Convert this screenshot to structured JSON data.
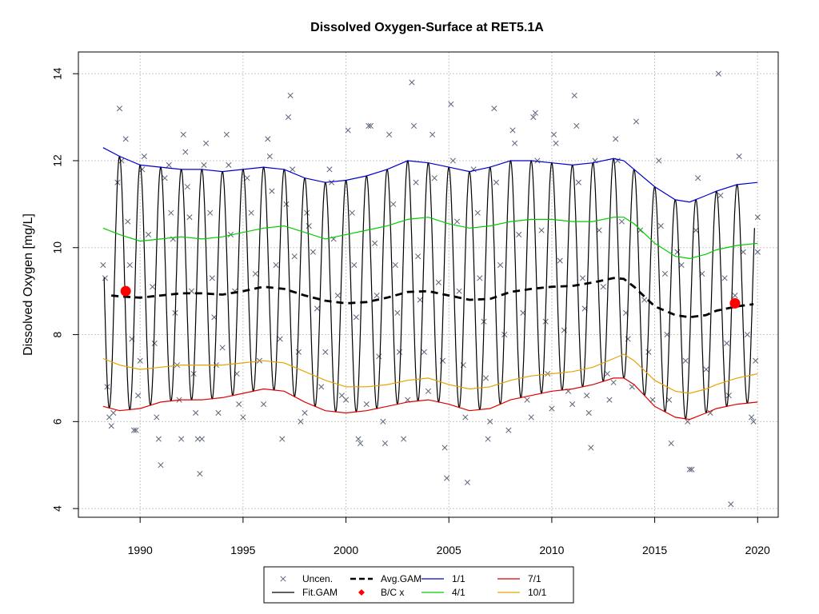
{
  "chart_data": {
    "type": "line",
    "title": "Dissolved Oxygen-Surface at RET5.1A",
    "xlabel": "",
    "ylabel": "Dissolved Oxygen [mg/L]",
    "xlim": [
      1987.0,
      2021.0
    ],
    "ylim": [
      3.8,
      14.5
    ],
    "x_ticks": [
      1990,
      1995,
      2000,
      2005,
      2010,
      2015,
      2020
    ],
    "y_ticks": [
      4,
      6,
      8,
      10,
      12,
      14
    ],
    "grid": true,
    "legend_position": "bottom-center",
    "colors": {
      "points": "#5a6478",
      "fit_gam": "#000000",
      "avg_gam": "#000000",
      "bc": "#ff0000",
      "jan1": "#0000cc",
      "apr1": "#00cc00",
      "jul1": "#dd0000",
      "oct1": "#e8a200"
    },
    "legend": [
      {
        "key": "uncen",
        "label": "Uncen."
      },
      {
        "key": "avg",
        "label": "Avg.GAM"
      },
      {
        "key": "jan1",
        "label": "1/1"
      },
      {
        "key": "jul1",
        "label": "7/1"
      },
      {
        "key": "fit",
        "label": "Fit.GAM"
      },
      {
        "key": "bc",
        "label": "B/C x"
      },
      {
        "key": "apr1",
        "label": "4/1"
      },
      {
        "key": "oct1",
        "label": "10/1"
      }
    ],
    "series": [
      {
        "name": "1/1",
        "key": "jan1",
        "x": [
          1988.2,
          1989.0,
          1990.0,
          1991.0,
          1992.0,
          1993.0,
          1994.0,
          1995.0,
          1996.0,
          1997.0,
          1998.0,
          1999.0,
          2000.0,
          2001.0,
          2002.0,
          2003.0,
          2004.0,
          2005.0,
          2006.0,
          2007.0,
          2008.0,
          2009.0,
          2010.0,
          2011.0,
          2012.0,
          2013.0,
          2013.5,
          2014.0,
          2015.0,
          2016.0,
          2016.7,
          2017.5,
          2018.0,
          2019.0,
          2020.0
        ],
        "y": [
          12.3,
          12.1,
          11.9,
          11.85,
          11.8,
          11.8,
          11.75,
          11.8,
          11.85,
          11.8,
          11.6,
          11.5,
          11.55,
          11.65,
          11.8,
          12.0,
          11.95,
          11.85,
          11.75,
          11.85,
          12.0,
          12.0,
          11.95,
          11.9,
          11.95,
          12.05,
          12.0,
          11.8,
          11.4,
          11.1,
          11.05,
          11.2,
          11.3,
          11.45,
          11.5
        ]
      },
      {
        "name": "4/1",
        "key": "apr1",
        "x": [
          1988.2,
          1989.0,
          1990.0,
          1991.0,
          1992.0,
          1993.0,
          1994.0,
          1995.0,
          1996.0,
          1997.0,
          1998.0,
          1999.0,
          2000.0,
          2001.0,
          2002.0,
          2003.0,
          2004.0,
          2005.0,
          2006.0,
          2007.0,
          2008.0,
          2009.0,
          2010.0,
          2011.0,
          2012.0,
          2013.0,
          2013.5,
          2014.0,
          2015.0,
          2016.0,
          2016.7,
          2017.5,
          2018.0,
          2019.0,
          2020.0
        ],
        "y": [
          10.45,
          10.3,
          10.15,
          10.2,
          10.25,
          10.2,
          10.25,
          10.35,
          10.45,
          10.5,
          10.35,
          10.2,
          10.3,
          10.4,
          10.5,
          10.65,
          10.7,
          10.55,
          10.45,
          10.5,
          10.6,
          10.65,
          10.65,
          10.6,
          10.6,
          10.7,
          10.7,
          10.55,
          10.1,
          9.8,
          9.75,
          9.85,
          9.95,
          10.05,
          10.1
        ]
      },
      {
        "name": "10/1",
        "key": "oct1",
        "x": [
          1988.2,
          1989.0,
          1990.0,
          1991.0,
          1992.0,
          1993.0,
          1994.0,
          1995.0,
          1996.0,
          1997.0,
          1998.0,
          1999.0,
          2000.0,
          2001.0,
          2002.0,
          2003.0,
          2004.0,
          2005.0,
          2006.0,
          2007.0,
          2008.0,
          2009.0,
          2010.0,
          2011.0,
          2012.0,
          2013.0,
          2013.5,
          2014.0,
          2015.0,
          2016.0,
          2016.7,
          2017.5,
          2018.0,
          2019.0,
          2020.0
        ],
        "y": [
          7.45,
          7.3,
          7.2,
          7.25,
          7.3,
          7.3,
          7.3,
          7.35,
          7.4,
          7.35,
          7.15,
          6.95,
          6.8,
          6.8,
          6.85,
          6.95,
          7.0,
          6.85,
          6.75,
          6.8,
          6.95,
          7.05,
          7.1,
          7.15,
          7.25,
          7.45,
          7.55,
          7.4,
          6.95,
          6.7,
          6.65,
          6.75,
          6.85,
          7.0,
          7.1
        ]
      },
      {
        "name": "7/1",
        "key": "jul1",
        "x": [
          1988.2,
          1989.0,
          1990.0,
          1991.0,
          1992.0,
          1993.0,
          1994.0,
          1995.0,
          1996.0,
          1997.0,
          1998.0,
          1999.0,
          2000.0,
          2001.0,
          2002.0,
          2003.0,
          2004.0,
          2005.0,
          2006.0,
          2007.0,
          2008.0,
          2009.0,
          2010.0,
          2011.0,
          2012.0,
          2013.0,
          2013.5,
          2014.0,
          2015.0,
          2016.0,
          2016.7,
          2017.5,
          2018.0,
          2019.0,
          2020.0
        ],
        "y": [
          6.35,
          6.25,
          6.3,
          6.45,
          6.5,
          6.5,
          6.55,
          6.65,
          6.75,
          6.7,
          6.45,
          6.25,
          6.2,
          6.25,
          6.35,
          6.45,
          6.5,
          6.4,
          6.25,
          6.3,
          6.5,
          6.6,
          6.7,
          6.75,
          6.85,
          7.0,
          7.0,
          6.85,
          6.35,
          6.1,
          6.05,
          6.2,
          6.3,
          6.4,
          6.45
        ]
      },
      {
        "name": "Avg.GAM",
        "key": "avg",
        "x": [
          1988.6,
          1989.0,
          1990.0,
          1991.0,
          1992.0,
          1993.0,
          1994.0,
          1995.0,
          1996.0,
          1997.0,
          1998.0,
          1999.0,
          2000.0,
          2001.0,
          2002.0,
          2003.0,
          2004.0,
          2005.0,
          2006.0,
          2007.0,
          2008.0,
          2009.0,
          2010.0,
          2011.0,
          2012.0,
          2013.0,
          2013.5,
          2014.0,
          2015.0,
          2016.0,
          2016.7,
          2017.5,
          2018.0,
          2019.0,
          2019.8
        ],
        "y": [
          8.9,
          8.88,
          8.85,
          8.9,
          8.95,
          8.95,
          8.92,
          9.0,
          9.1,
          9.05,
          8.9,
          8.78,
          8.72,
          8.75,
          8.85,
          8.98,
          9.0,
          8.9,
          8.8,
          8.82,
          8.98,
          9.05,
          9.1,
          9.12,
          9.2,
          9.3,
          9.28,
          9.1,
          8.65,
          8.45,
          8.4,
          8.45,
          8.55,
          8.65,
          8.7
        ]
      },
      {
        "name": "Fit.GAM",
        "key": "fit",
        "type": "seasonal",
        "x_start": 1988.25,
        "x_end": 2019.85,
        "note_source": "oscillates between the 7/1 (low) and 1/1 (high) curves each year"
      }
    ],
    "bc_points": [
      {
        "x": 1989.3,
        "y": 9.0
      },
      {
        "x": 2018.9,
        "y": 8.72
      }
    ],
    "points": [
      [
        1988.2,
        9.6
      ],
      [
        1988.3,
        9.3
      ],
      [
        1988.4,
        6.8
      ],
      [
        1988.5,
        6.1
      ],
      [
        1988.6,
        5.9
      ],
      [
        1988.7,
        6.2
      ],
      [
        1988.9,
        11.5
      ],
      [
        1989.0,
        13.2
      ],
      [
        1989.1,
        12.0
      ],
      [
        1989.3,
        12.5
      ],
      [
        1989.4,
        10.6
      ],
      [
        1989.5,
        9.6
      ],
      [
        1989.6,
        7.9
      ],
      [
        1989.7,
        5.8
      ],
      [
        1989.8,
        5.8
      ],
      [
        1989.9,
        6.6
      ],
      [
        1990.0,
        7.4
      ],
      [
        1990.1,
        11.8
      ],
      [
        1990.2,
        12.1
      ],
      [
        1990.4,
        10.3
      ],
      [
        1990.6,
        9.1
      ],
      [
        1990.7,
        7.8
      ],
      [
        1990.8,
        6.1
      ],
      [
        1990.9,
        5.6
      ],
      [
        1991.0,
        5.0
      ],
      [
        1991.2,
        11.6
      ],
      [
        1991.4,
        11.9
      ],
      [
        1991.5,
        10.8
      ],
      [
        1991.6,
        10.2
      ],
      [
        1991.7,
        8.5
      ],
      [
        1991.8,
        7.3
      ],
      [
        1991.9,
        6.5
      ],
      [
        1992.0,
        5.6
      ],
      [
        1992.1,
        12.6
      ],
      [
        1992.2,
        12.2
      ],
      [
        1992.3,
        11.4
      ],
      [
        1992.4,
        10.7
      ],
      [
        1992.5,
        9.0
      ],
      [
        1992.6,
        7.1
      ],
      [
        1992.7,
        6.2
      ],
      [
        1992.8,
        5.6
      ],
      [
        1992.9,
        4.8
      ],
      [
        1993.0,
        5.6
      ],
      [
        1993.1,
        11.9
      ],
      [
        1993.2,
        12.4
      ],
      [
        1993.4,
        10.8
      ],
      [
        1993.5,
        9.3
      ],
      [
        1993.6,
        8.4
      ],
      [
        1993.7,
        7.3
      ],
      [
        1993.8,
        6.2
      ],
      [
        1994.0,
        7.7
      ],
      [
        1994.2,
        12.6
      ],
      [
        1994.3,
        11.9
      ],
      [
        1994.4,
        10.3
      ],
      [
        1994.6,
        9.0
      ],
      [
        1994.7,
        7.1
      ],
      [
        1994.8,
        6.4
      ],
      [
        1995.0,
        6.1
      ],
      [
        1995.2,
        11.6
      ],
      [
        1995.4,
        10.8
      ],
      [
        1995.6,
        9.4
      ],
      [
        1995.8,
        7.4
      ],
      [
        1996.0,
        6.4
      ],
      [
        1996.2,
        12.5
      ],
      [
        1996.3,
        12.1
      ],
      [
        1996.4,
        11.3
      ],
      [
        1996.6,
        9.6
      ],
      [
        1996.8,
        7.9
      ],
      [
        1996.9,
        5.6
      ],
      [
        1997.1,
        11.0
      ],
      [
        1997.2,
        13.0
      ],
      [
        1997.3,
        13.5
      ],
      [
        1997.4,
        11.8
      ],
      [
        1997.5,
        9.8
      ],
      [
        1997.7,
        7.6
      ],
      [
        1997.8,
        6.0
      ],
      [
        1998.0,
        6.2
      ],
      [
        1998.1,
        10.8
      ],
      [
        1998.2,
        10.5
      ],
      [
        1998.4,
        9.9
      ],
      [
        1998.6,
        8.6
      ],
      [
        1998.8,
        6.8
      ],
      [
        1999.0,
        7.6
      ],
      [
        1999.2,
        11.8
      ],
      [
        1999.3,
        11.5
      ],
      [
        1999.4,
        10.2
      ],
      [
        1999.6,
        8.9
      ],
      [
        1999.8,
        6.6
      ],
      [
        2000.0,
        6.5
      ],
      [
        2000.1,
        12.7
      ],
      [
        2000.3,
        10.8
      ],
      [
        2000.4,
        9.6
      ],
      [
        2000.5,
        8.4
      ],
      [
        2000.6,
        5.6
      ],
      [
        2000.7,
        5.5
      ],
      [
        2001.0,
        6.4
      ],
      [
        2001.1,
        12.8
      ],
      [
        2001.2,
        12.8
      ],
      [
        2001.4,
        10.1
      ],
      [
        2001.5,
        8.9
      ],
      [
        2001.6,
        7.5
      ],
      [
        2001.8,
        6.0
      ],
      [
        2001.9,
        5.5
      ],
      [
        2002.1,
        12.6
      ],
      [
        2002.3,
        11.0
      ],
      [
        2002.4,
        9.6
      ],
      [
        2002.5,
        8.5
      ],
      [
        2002.6,
        7.6
      ],
      [
        2002.8,
        5.6
      ],
      [
        2003.0,
        6.5
      ],
      [
        2003.2,
        13.8
      ],
      [
        2003.3,
        12.8
      ],
      [
        2003.4,
        11.5
      ],
      [
        2003.5,
        9.8
      ],
      [
        2003.6,
        8.8
      ],
      [
        2003.8,
        7.6
      ],
      [
        2004.0,
        6.7
      ],
      [
        2004.2,
        12.6
      ],
      [
        2004.3,
        11.6
      ],
      [
        2004.5,
        9.2
      ],
      [
        2004.7,
        7.4
      ],
      [
        2004.8,
        5.4
      ],
      [
        2004.9,
        4.7
      ],
      [
        2005.1,
        13.3
      ],
      [
        2005.2,
        12.0
      ],
      [
        2005.4,
        10.6
      ],
      [
        2005.5,
        9.0
      ],
      [
        2005.7,
        7.3
      ],
      [
        2005.8,
        6.1
      ],
      [
        2005.9,
        4.6
      ],
      [
        2006.2,
        11.8
      ],
      [
        2006.4,
        10.8
      ],
      [
        2006.5,
        9.3
      ],
      [
        2006.7,
        8.3
      ],
      [
        2006.8,
        7.0
      ],
      [
        2006.9,
        5.6
      ],
      [
        2007.0,
        6.0
      ],
      [
        2007.2,
        13.2
      ],
      [
        2007.3,
        11.5
      ],
      [
        2007.5,
        9.6
      ],
      [
        2007.7,
        8.0
      ],
      [
        2007.9,
        5.8
      ],
      [
        2008.1,
        12.7
      ],
      [
        2008.2,
        12.4
      ],
      [
        2008.4,
        10.3
      ],
      [
        2008.6,
        8.5
      ],
      [
        2008.8,
        6.5
      ],
      [
        2009.0,
        6.1
      ],
      [
        2009.1,
        13.0
      ],
      [
        2009.2,
        13.1
      ],
      [
        2009.3,
        12.0
      ],
      [
        2009.5,
        10.4
      ],
      [
        2009.7,
        8.3
      ],
      [
        2009.8,
        7.1
      ],
      [
        2010.0,
        6.3
      ],
      [
        2010.1,
        12.6
      ],
      [
        2010.2,
        12.4
      ],
      [
        2010.4,
        9.7
      ],
      [
        2010.6,
        8.1
      ],
      [
        2010.8,
        6.7
      ],
      [
        2011.0,
        6.4
      ],
      [
        2011.1,
        13.5
      ],
      [
        2011.2,
        12.8
      ],
      [
        2011.3,
        11.5
      ],
      [
        2011.5,
        9.3
      ],
      [
        2011.6,
        8.6
      ],
      [
        2011.7,
        6.6
      ],
      [
        2011.8,
        6.2
      ],
      [
        2011.9,
        5.4
      ],
      [
        2012.1,
        12.0
      ],
      [
        2012.3,
        10.4
      ],
      [
        2012.5,
        9.1
      ],
      [
        2012.7,
        7.1
      ],
      [
        2012.8,
        6.5
      ],
      [
        2013.0,
        6.9
      ],
      [
        2013.1,
        12.5
      ],
      [
        2013.2,
        12.0
      ],
      [
        2013.4,
        10.6
      ],
      [
        2013.6,
        8.5
      ],
      [
        2013.7,
        7.9
      ],
      [
        2013.9,
        6.8
      ],
      [
        2014.1,
        12.9
      ],
      [
        2014.3,
        10.4
      ],
      [
        2014.5,
        8.8
      ],
      [
        2014.7,
        7.6
      ],
      [
        2014.9,
        6.5
      ],
      [
        2015.2,
        12.0
      ],
      [
        2015.3,
        10.5
      ],
      [
        2015.5,
        9.4
      ],
      [
        2015.6,
        8.0
      ],
      [
        2015.7,
        6.5
      ],
      [
        2015.8,
        5.5
      ],
      [
        2016.1,
        9.9
      ],
      [
        2016.3,
        9.6
      ],
      [
        2016.5,
        7.4
      ],
      [
        2016.6,
        6.0
      ],
      [
        2016.7,
        4.9
      ],
      [
        2016.8,
        4.9
      ],
      [
        2017.0,
        10.4
      ],
      [
        2017.1,
        11.6
      ],
      [
        2017.3,
        9.4
      ],
      [
        2017.5,
        7.2
      ],
      [
        2017.7,
        6.2
      ],
      [
        2018.1,
        14.0
      ],
      [
        2018.2,
        11.2
      ],
      [
        2018.4,
        9.3
      ],
      [
        2018.5,
        7.8
      ],
      [
        2018.6,
        6.6
      ],
      [
        2018.7,
        4.1
      ],
      [
        2018.9,
        8.9
      ],
      [
        2019.1,
        12.1
      ],
      [
        2019.3,
        9.9
      ],
      [
        2019.5,
        8.0
      ],
      [
        2019.7,
        6.1
      ],
      [
        2019.8,
        6.0
      ],
      [
        2019.9,
        7.4
      ],
      [
        2020.0,
        10.7
      ],
      [
        2020.0,
        9.9
      ]
    ]
  }
}
